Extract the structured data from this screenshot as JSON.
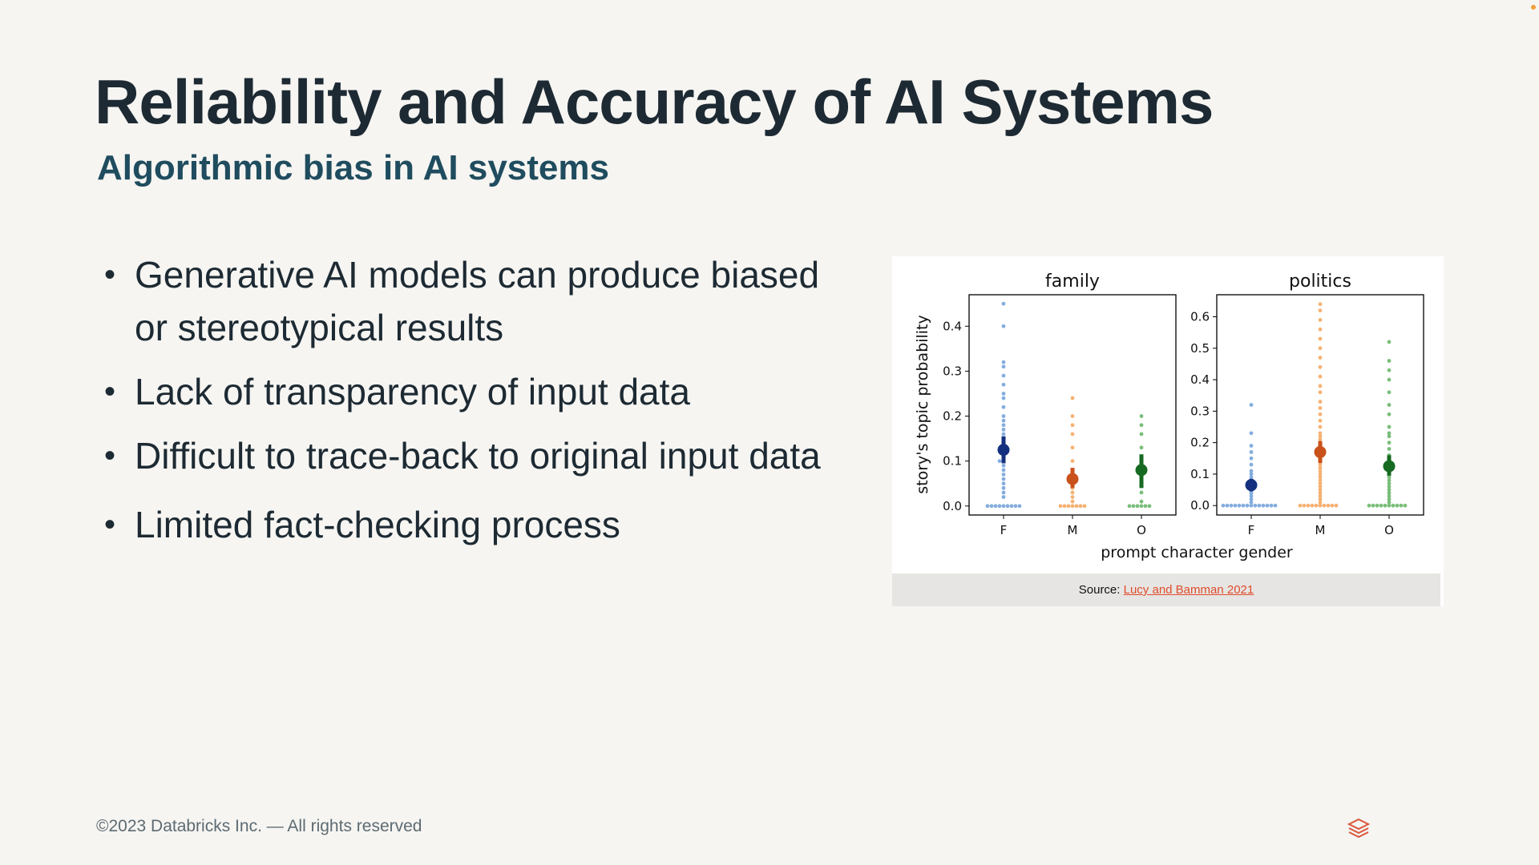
{
  "slide": {
    "title": "Reliability and Accuracy of AI Systems",
    "subtitle_strong": "Algorithmic bias",
    "subtitle_rest": " in AI systems",
    "bullets": [
      "Generative AI models can produce biased or stereotypical results",
      "Lack of transparency of input data",
      "Difficult to trace-back to original input data",
      "Limited fact-checking process"
    ],
    "source_prefix": "Source: ",
    "source_link": "Lucy and Bamman 2021",
    "footer": "©2023 Databricks Inc. — All rights reserved",
    "logo_icon": "databricks-logo-icon"
  },
  "chart_data": [
    {
      "type": "scatter",
      "title": "family",
      "xlabel": "prompt character gender",
      "ylabel": "story's topic probability",
      "categories": [
        "F",
        "M",
        "O"
      ],
      "yticks": [
        "0.0",
        "0.1",
        "0.2",
        "0.3",
        "0.4"
      ],
      "ylim": [
        -0.02,
        0.47
      ],
      "means": [
        0.125,
        0.06,
        0.08
      ],
      "ci": [
        [
          0.095,
          0.155
        ],
        [
          0.04,
          0.085
        ],
        [
          0.04,
          0.115
        ]
      ],
      "points": [
        [
          0,
          0,
          0,
          0,
          0,
          0,
          0,
          0,
          0,
          0.02,
          0.03,
          0.04,
          0.05,
          0.06,
          0.07,
          0.08,
          0.09,
          0.1,
          0.1,
          0.11,
          0.12,
          0.13,
          0.14,
          0.15,
          0.16,
          0.17,
          0.18,
          0.19,
          0.2,
          0.22,
          0.24,
          0.25,
          0.27,
          0.29,
          0.31,
          0.32,
          0.4,
          0.45
        ],
        [
          0,
          0,
          0,
          0,
          0,
          0,
          0,
          0.01,
          0.02,
          0.03,
          0.04,
          0.05,
          0.06,
          0.07,
          0.08,
          0.1,
          0.13,
          0.16,
          0.18,
          0.2,
          0.24
        ],
        [
          0,
          0,
          0,
          0,
          0,
          0,
          0.01,
          0.03,
          0.05,
          0.07,
          0.08,
          0.09,
          0.1,
          0.11,
          0.13,
          0.16,
          0.18,
          0.2
        ]
      ],
      "colors": [
        "#6f9fd8",
        "#f3a45a",
        "#63b363"
      ],
      "mean_colors": [
        "#14307e",
        "#c9511a",
        "#166a22"
      ]
    },
    {
      "type": "scatter",
      "title": "politics",
      "categories": [
        "F",
        "M",
        "O"
      ],
      "yticks": [
        "0.0",
        "0.1",
        "0.2",
        "0.3",
        "0.4",
        "0.5",
        "0.6"
      ],
      "ylim": [
        -0.03,
        0.67
      ],
      "means": [
        0.065,
        0.17,
        0.125
      ],
      "ci": [
        [
          0.045,
          0.085
        ],
        [
          0.135,
          0.205
        ],
        [
          0.095,
          0.16
        ]
      ],
      "points": [
        [
          0,
          0,
          0,
          0,
          0,
          0,
          0,
          0,
          0,
          0,
          0,
          0,
          0,
          0,
          0.01,
          0.02,
          0.03,
          0.04,
          0.05,
          0.06,
          0.07,
          0.08,
          0.09,
          0.1,
          0.11,
          0.13,
          0.15,
          0.17,
          0.19,
          0.23,
          0.32
        ],
        [
          0,
          0,
          0,
          0,
          0,
          0,
          0,
          0,
          0,
          0,
          0.01,
          0.02,
          0.03,
          0.04,
          0.05,
          0.06,
          0.07,
          0.08,
          0.09,
          0.1,
          0.11,
          0.12,
          0.13,
          0.14,
          0.15,
          0.16,
          0.17,
          0.18,
          0.19,
          0.2,
          0.21,
          0.22,
          0.23,
          0.25,
          0.27,
          0.29,
          0.31,
          0.33,
          0.36,
          0.38,
          0.41,
          0.44,
          0.47,
          0.5,
          0.53,
          0.56,
          0.59,
          0.62,
          0.64
        ],
        [
          0,
          0,
          0,
          0,
          0,
          0,
          0,
          0,
          0,
          0,
          0.01,
          0.02,
          0.03,
          0.04,
          0.05,
          0.06,
          0.07,
          0.08,
          0.09,
          0.1,
          0.11,
          0.12,
          0.13,
          0.14,
          0.15,
          0.16,
          0.18,
          0.2,
          0.22,
          0.23,
          0.25,
          0.29,
          0.32,
          0.36,
          0.4,
          0.43,
          0.46,
          0.52
        ]
      ],
      "colors": [
        "#6f9fd8",
        "#f3a45a",
        "#63b363"
      ],
      "mean_colors": [
        "#14307e",
        "#c9511a",
        "#166a22"
      ]
    }
  ]
}
